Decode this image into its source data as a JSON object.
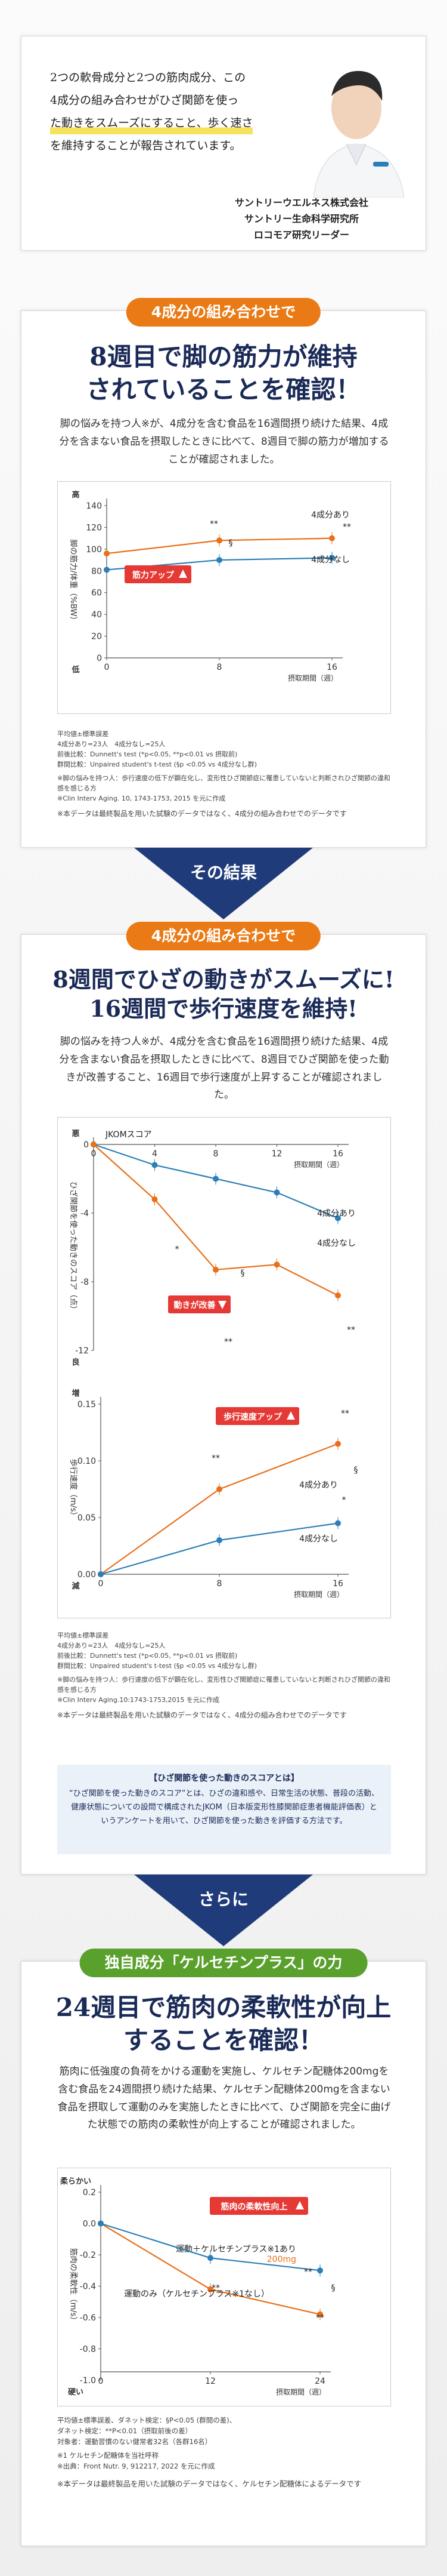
{
  "intro": {
    "lines": [
      "2つの軟骨成分と2つの筋肉成分、この",
      "4成分の組み合わせがひざ関節を使っ",
      "た動きをスムーズにすること、歩く速さ",
      "を維持することが報告されています。"
    ],
    "org1": "サントリーウエルネス株式会社",
    "org2": "サントリー生命科学研究所",
    "org3": "ロコモア研究リーダー"
  },
  "section1": {
    "pill": "4成分の組み合わせで",
    "headline1": "8週目で脚の筋力が維持",
    "headline2": "されていることを確認！",
    "body": "脚の悩みを持つ人※が、4成分を含む食品を16週間摂り続けた結果、4成分を含まない食品を摂取したときに比べて、8週目で脚の筋力が増加することが確認されました。",
    "notes": [
      "平均値±標準誤差",
      "4成分あり=23人　4成分なし=25人",
      "前後比較：Dunnett's test (*p<0.05, **p<0.01 vs 摂取前)",
      "群間比較：Unpaired student's t-test (§p <0.05 vs 4成分なし群)",
      "※脚の悩みを持つ人：歩行速度の低下が顕在化し、変形性ひざ関節症に罹患していないと判断されひざ関節の違和感を感じる方",
      "※Clin Interv Aging. 10, 1743-1753, 2015 を元に作成"
    ],
    "disclaimer": "※本データは最終製品を用いた試験のデータではなく、4成分の組み合わせでのデータです"
  },
  "arrow1": "その結果",
  "section2": {
    "pill": "4成分の組み合わせで",
    "headline1": "8週間でひざの動きがスムーズに!",
    "headline2": "16週間で歩行速度を維持!",
    "body": "脚の悩みを持つ人※が、4成分を含む食品を16週間摂り続けた結果、4成分を含まない食品を摂取したときに比べて、8週目でひざ関節を使った動きが改善すること、16週目で歩行速度が上昇することが確認されました。",
    "notes": [
      "平均値±標準誤差",
      "4成分あり=23人　4成分なし=25人",
      "前後比較：Dunnett's test (*p<0.05, **p<0.01 vs 摂取前)",
      "群間比較：Unpaired student's t-test (§p <0.05 vs 4成分なし群)",
      "※脚の悩みを持つ人：歩行速度の低下が顕在化し、変形性ひざ関節症に罹患していないと判断されひざ関節の違和感を感じる方",
      "※Clin Interv Aging.10:1743-1753,2015 を元に作成"
    ],
    "disclaimer": "※本データは最終製品を用いた試験のデータではなく、4成分の組み合わせでのデータです",
    "jkom_title": "【ひざ関節を使った動きのスコアとは】",
    "jkom_body": "“ひざ関節を使った動きのスコア”とは、ひざの違和感や、日常生活の状態、普段の活動、健康状態についての設問で構成されたJKOM（日本版変形性膝関節症患者機能評価表）というアンケートを用いて、ひざ関節を使った動きを評価する方法です。"
  },
  "arrow2": "さらに",
  "section3": {
    "pill": "独自成分「ケルセチンプラス」の力",
    "headline1": "24週目で筋肉の柔軟性が向上",
    "headline2": "することを確認！",
    "body": "筋肉に低強度の負荷をかける運動を実施し、ケルセチン配糖体200mgを含む食品を24週間摂り続けた結果、ケルセチン配糖体200mgを含まない食品を摂取して運動のみを実施したときに比べて、ひざ関節を完全に曲げた状態での筋肉の柔軟性が向上することが確認されました。",
    "notes": [
      "平均値±標準誤差、ダネット検定：§P<0.05 (群間の差)、",
      "ダネット検定：**P<0.01（摂取前後の差）",
      "対象者：運動習慣のない健常者32名（各群16名）",
      "※1 ケルセチン配糖体を当社呼称",
      "※出典：Front Nutr. 9, 912217, 2022 を元に作成"
    ],
    "disclaimer": "※本データは最終製品を用いた試験のデータではなく、ケルセチン配糖体によるデータです"
  },
  "chart_data": [
    {
      "type": "line",
      "ylabel": "脚の筋力/体重（%BW）",
      "ytop": "高",
      "ybottom": "低",
      "xlabel": "摂取期間（週）",
      "x": [
        0,
        8,
        16
      ],
      "ylim": [
        0,
        140
      ],
      "yticks": [
        0,
        20,
        40,
        60,
        80,
        100,
        120,
        140
      ],
      "series": [
        {
          "name": "4成分あり",
          "values": [
            96,
            108,
            110
          ],
          "color": "#e8701a"
        },
        {
          "name": "4成分なし",
          "values": [
            81,
            90,
            92
          ],
          "color": "#2a7fb8"
        }
      ],
      "marks": {
        "sig_a": "**",
        "sig_b": "**",
        "sig_c": "§",
        "callout": "筋力アップ"
      }
    },
    {
      "type": "line",
      "title": "JKOMスコア",
      "ylabel": "ひざ関節を使った動きのスコア（点）",
      "ytop": "悪",
      "ybottom": "良",
      "xlabel": "摂取期間（週）",
      "x": [
        0,
        4,
        8,
        12,
        16
      ],
      "ylim": [
        -12,
        0
      ],
      "yticks": [
        0,
        -4,
        -8,
        -12
      ],
      "series": [
        {
          "name": "4成分なし",
          "values": [
            0,
            -1.2,
            -2.0,
            -2.8,
            -4.3
          ],
          "color": "#2a7fb8"
        },
        {
          "name": "4成分あり",
          "values": [
            0,
            -3.2,
            -7.3,
            -7.0,
            -8.8
          ],
          "color": "#e8701a"
        }
      ],
      "marks": {
        "sig_a": "*",
        "sig_b": "**",
        "sig_c": "**",
        "sig_d": "§",
        "callout": "動きが改善"
      }
    },
    {
      "type": "line",
      "ylabel": "歩行速度（m/s）",
      "ytop": "増",
      "ybottom": "減",
      "xlabel": "摂取期間（週）",
      "x": [
        0,
        8,
        16
      ],
      "ylim": [
        0,
        0.15
      ],
      "yticks": [
        0.0,
        0.05,
        0.1,
        0.15
      ],
      "series": [
        {
          "name": "4成分あり",
          "values": [
            0,
            0.075,
            0.115
          ],
          "color": "#e8701a"
        },
        {
          "name": "4成分なし",
          "values": [
            0,
            0.03,
            0.045
          ],
          "color": "#2a7fb8"
        }
      ],
      "marks": {
        "sig_a": "**",
        "sig_b": "**",
        "sig_c": "*",
        "sig_d": "§",
        "callout": "歩行速度アップ"
      }
    },
    {
      "type": "line",
      "ylabel": "筋肉の柔軟性（m/s）",
      "ytop": "柔らかい",
      "ybottom": "硬い",
      "xlabel": "摂取期間（週）",
      "x": [
        0,
        12,
        24
      ],
      "ylim": [
        -1.0,
        0.2
      ],
      "yticks": [
        -1.0,
        -0.8,
        -0.6,
        -0.4,
        -0.2,
        0.0,
        0.2
      ],
      "series": [
        {
          "name": "運動＋ケルセチンプラス※1あり 200mg",
          "values": [
            0,
            -0.42,
            -0.58
          ],
          "color": "#e8701a"
        },
        {
          "name": "運動のみ（ケルセチンプラス※1なし）",
          "values": [
            0,
            -0.22,
            -0.3
          ],
          "color": "#2a7fb8"
        }
      ],
      "marks": {
        "sig_a": "**",
        "sig_b": "**",
        "sig_c": "**",
        "sig_d": "§",
        "callout": "筋肉の柔軟性向上"
      }
    }
  ]
}
